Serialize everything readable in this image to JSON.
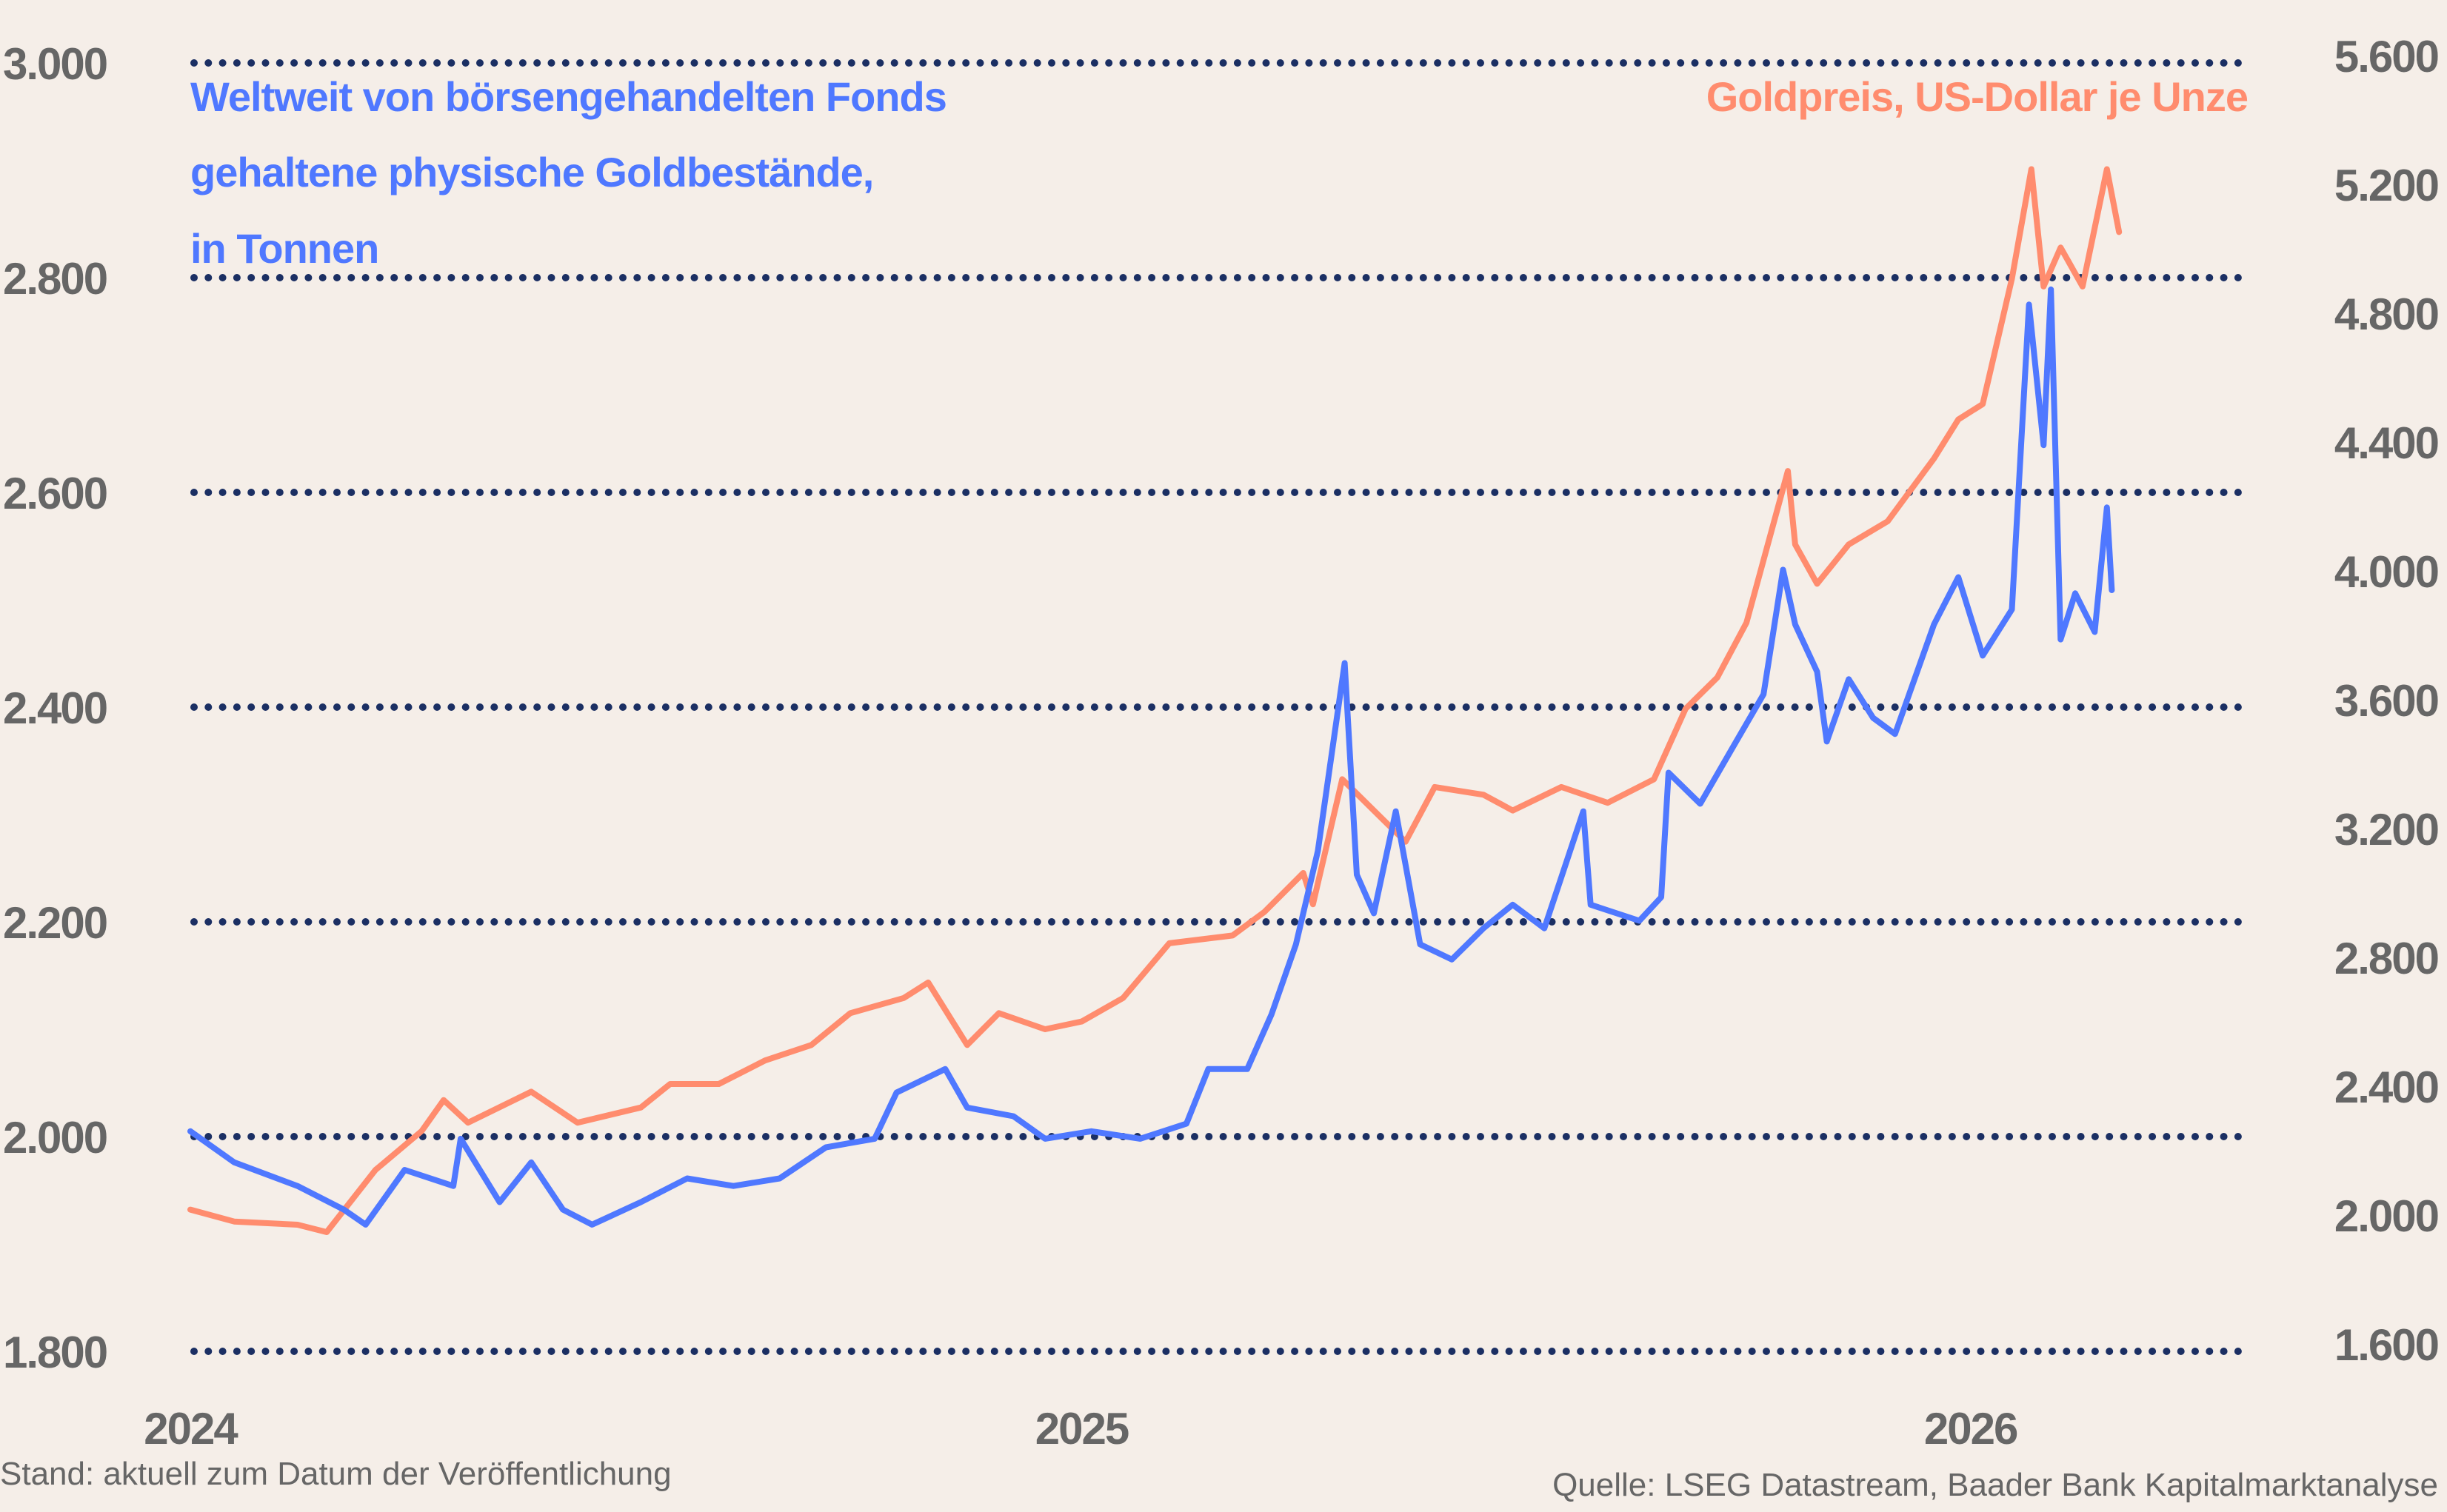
{
  "chart_data": {
    "type": "line",
    "x_axis": {
      "type": "date",
      "ticks": [
        "2024",
        "2025",
        "2026"
      ]
    },
    "y_left": {
      "range": [
        1800,
        3000
      ],
      "ticks": [
        "1.800",
        "2.000",
        "2.200",
        "2.400",
        "2.600",
        "2.800",
        "3.000"
      ],
      "grid": true,
      "grid_style": "dotted"
    },
    "y_right": {
      "range": [
        1600,
        5600
      ],
      "ticks": [
        "1.600",
        "2.000",
        "2.400",
        "2.800",
        "3.200",
        "3.600",
        "4.000",
        "4.400",
        "4.800",
        "5.200",
        "5.600"
      ]
    },
    "series": [
      {
        "name": "Weltweit von börsengehandelten Fonds gehaltene physische Goldbestände, in Tonnen",
        "name_lines": [
          "Weltweit von börsengehandelten Fonds",
          "gehaltene physische Goldbestände,",
          "in Tonnen"
        ],
        "axis": "left",
        "color": "#4F78FF",
        "points": [
          [
            "2024-01-01",
            2005
          ],
          [
            "2024-01-19",
            1976
          ],
          [
            "2024-02-14",
            1954
          ],
          [
            "2024-03-04",
            1932
          ],
          [
            "2024-03-13",
            1918
          ],
          [
            "2024-03-29",
            1969
          ],
          [
            "2024-04-18",
            1954
          ],
          [
            "2024-04-21",
            1998
          ],
          [
            "2024-05-07",
            1939
          ],
          [
            "2024-05-20",
            1976
          ],
          [
            "2024-06-02",
            1932
          ],
          [
            "2024-06-14",
            1918
          ],
          [
            "2024-07-04",
            1939
          ],
          [
            "2024-07-23",
            1961
          ],
          [
            "2024-08-11",
            1954
          ],
          [
            "2024-08-30",
            1961
          ],
          [
            "2024-09-18",
            1990
          ],
          [
            "2024-10-08",
            1998
          ],
          [
            "2024-10-17",
            2041
          ],
          [
            "2024-11-06",
            2063
          ],
          [
            "2024-11-15",
            2027
          ],
          [
            "2024-12-04",
            2019
          ],
          [
            "2024-12-17",
            1998
          ],
          [
            "2025-01-05",
            2005
          ],
          [
            "2025-01-25",
            1998
          ],
          [
            "2025-02-13",
            2012
          ],
          [
            "2025-02-22",
            2063
          ],
          [
            "2025-03-10",
            2063
          ],
          [
            "2025-03-20",
            2114
          ],
          [
            "2025-03-30",
            2179
          ],
          [
            "2025-04-08",
            2266
          ],
          [
            "2025-04-19",
            2441
          ],
          [
            "2025-04-24",
            2244
          ],
          [
            "2025-05-01",
            2208
          ],
          [
            "2025-05-10",
            2303
          ],
          [
            "2025-05-20",
            2179
          ],
          [
            "2025-06-02",
            2165
          ],
          [
            "2025-06-15",
            2194
          ],
          [
            "2025-06-27",
            2216
          ],
          [
            "2025-07-10",
            2194
          ],
          [
            "2025-07-26",
            2303
          ],
          [
            "2025-07-29",
            2216
          ],
          [
            "2025-08-18",
            2201
          ],
          [
            "2025-08-27",
            2223
          ],
          [
            "2025-08-30",
            2339
          ],
          [
            "2025-09-12",
            2310
          ],
          [
            "2025-09-25",
            2361
          ],
          [
            "2025-10-08",
            2412
          ],
          [
            "2025-10-16",
            2528
          ],
          [
            "2025-10-21",
            2477
          ],
          [
            "2025-10-30",
            2433
          ],
          [
            "2025-11-03",
            2368
          ],
          [
            "2025-11-12",
            2426
          ],
          [
            "2025-11-22",
            2390
          ],
          [
            "2025-12-01",
            2375
          ],
          [
            "2025-12-17",
            2477
          ],
          [
            "2025-12-27",
            2521
          ],
          [
            "2026-01-06",
            2448
          ],
          [
            "2026-01-18",
            2491
          ],
          [
            "2026-01-25",
            2775
          ],
          [
            "2026-01-31",
            2644
          ],
          [
            "2026-02-03",
            2789
          ],
          [
            "2026-02-07",
            2463
          ],
          [
            "2026-02-13",
            2506
          ],
          [
            "2026-02-21",
            2470
          ],
          [
            "2026-02-26",
            2586
          ],
          [
            "2026-02-28",
            2509
          ]
        ]
      },
      {
        "name": "Goldpreis, US-Dollar je Unze",
        "axis": "right",
        "color": "#FF8C6E",
        "points": [
          [
            "2024-01-01",
            2040
          ],
          [
            "2024-01-19",
            2003
          ],
          [
            "2024-02-14",
            1993
          ],
          [
            "2024-02-26",
            1970
          ],
          [
            "2024-03-17",
            2163
          ],
          [
            "2024-04-05",
            2284
          ],
          [
            "2024-04-14",
            2380
          ],
          [
            "2024-04-24",
            2310
          ],
          [
            "2024-05-20",
            2406
          ],
          [
            "2024-06-08",
            2310
          ],
          [
            "2024-07-04",
            2357
          ],
          [
            "2024-07-16",
            2430
          ],
          [
            "2024-08-05",
            2430
          ],
          [
            "2024-08-24",
            2503
          ],
          [
            "2024-09-12",
            2551
          ],
          [
            "2024-09-28",
            2650
          ],
          [
            "2024-10-20",
            2697
          ],
          [
            "2024-10-30",
            2745
          ],
          [
            "2024-11-15",
            2551
          ],
          [
            "2024-11-28",
            2650
          ],
          [
            "2024-12-17",
            2600
          ],
          [
            "2025-01-01",
            2624
          ],
          [
            "2025-01-18",
            2697
          ],
          [
            "2025-02-06",
            2867
          ],
          [
            "2025-03-04",
            2891
          ],
          [
            "2025-03-17",
            2964
          ],
          [
            "2025-04-02",
            3085
          ],
          [
            "2025-04-06",
            2988
          ],
          [
            "2025-04-18",
            3376
          ],
          [
            "2025-05-01",
            3279
          ],
          [
            "2025-05-14",
            3182
          ],
          [
            "2025-05-26",
            3352
          ],
          [
            "2025-06-15",
            3328
          ],
          [
            "2025-06-27",
            3279
          ],
          [
            "2025-07-17",
            3352
          ],
          [
            "2025-08-05",
            3303
          ],
          [
            "2025-08-24",
            3376
          ],
          [
            "2025-09-06",
            3595
          ],
          [
            "2025-09-19",
            3692
          ],
          [
            "2025-10-01",
            3862
          ],
          [
            "2025-10-18",
            4333
          ],
          [
            "2025-10-21",
            4105
          ],
          [
            "2025-10-30",
            3983
          ],
          [
            "2025-11-12",
            4105
          ],
          [
            "2025-11-28",
            4177
          ],
          [
            "2025-12-17",
            4372
          ],
          [
            "2025-12-27",
            4493
          ],
          [
            "2026-01-06",
            4541
          ],
          [
            "2026-01-18",
            4930
          ],
          [
            "2026-01-26",
            5270
          ],
          [
            "2026-01-31",
            4906
          ],
          [
            "2026-02-07",
            5027
          ],
          [
            "2026-02-16",
            4906
          ],
          [
            "2026-02-26",
            5270
          ],
          [
            "2026-03-03",
            5075
          ]
        ]
      }
    ],
    "grid_color": "#1B2F63",
    "footnote_left": "Stand: aktuell zum Datum der Veröffentlichung",
    "footnote_right": "Quelle: LSEG Datastream, Baader Bank Kapitalmarktanalyse"
  }
}
